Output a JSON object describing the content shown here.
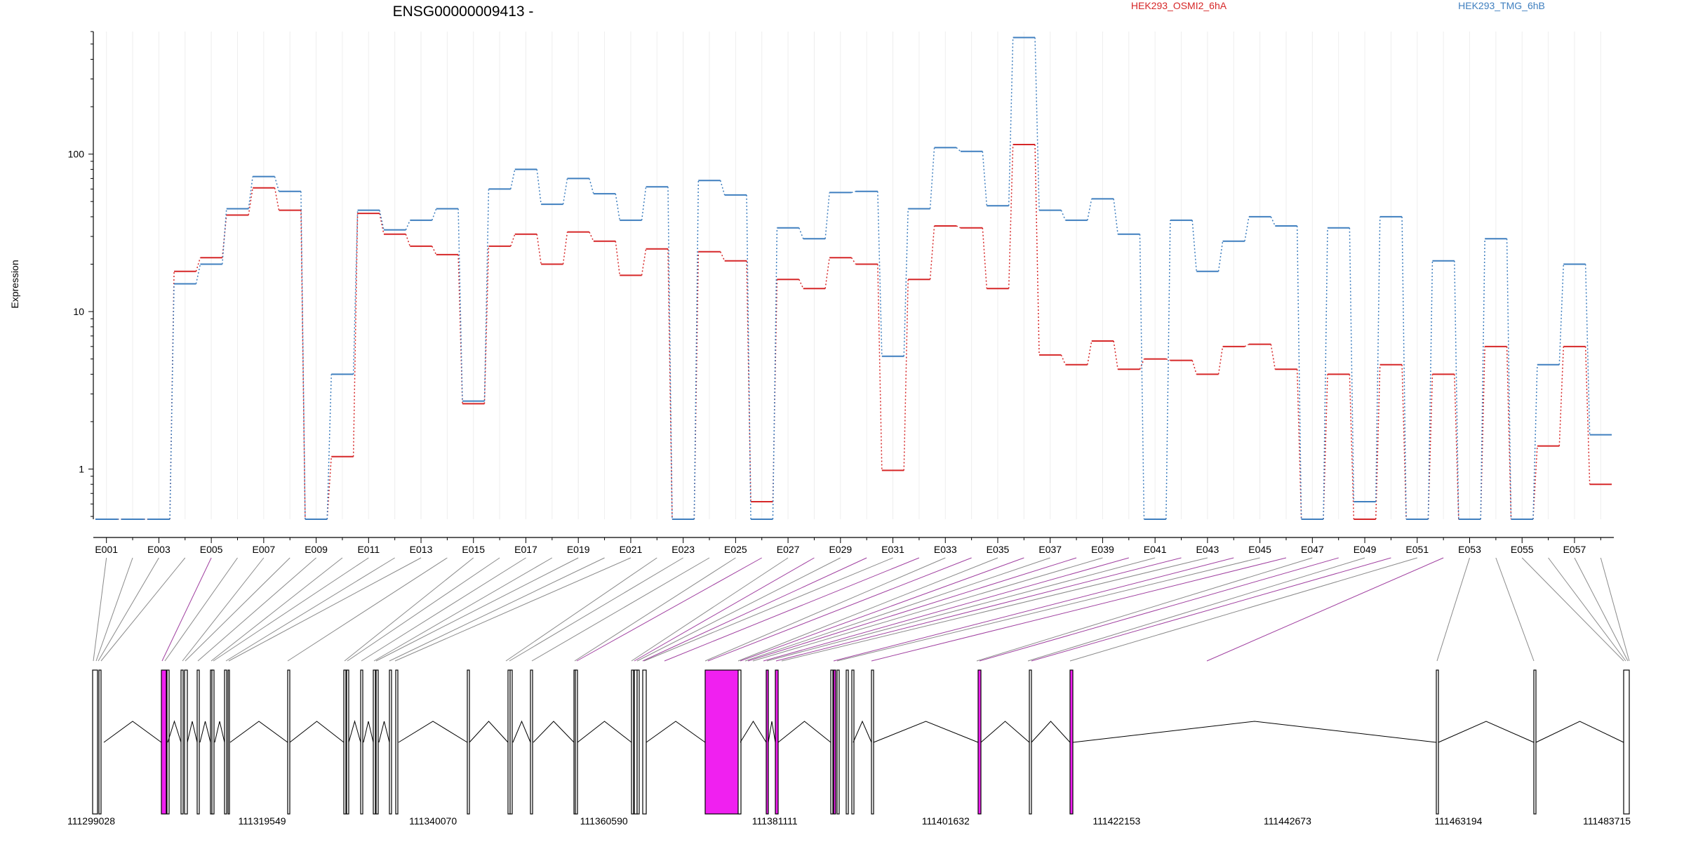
{
  "chart_data": {
    "type": "line",
    "title": "ENSG00000009413 -",
    "ylabel": "Expression",
    "xlabel": "",
    "y_scale": "log",
    "ylim": [
      0.48,
      600
    ],
    "y_ticks": [
      1,
      10,
      100
    ],
    "y_tick_labels": [
      "1",
      "10",
      "100"
    ],
    "grid": "vertical",
    "legend_position": "top-right",
    "categories": [
      "E001",
      "E002",
      "E003",
      "E004",
      "E005",
      "E006",
      "E007",
      "E008",
      "E009",
      "E010",
      "E011",
      "E012",
      "E013",
      "E014",
      "E015",
      "E016",
      "E017",
      "E018",
      "E019",
      "E020",
      "E021",
      "E022",
      "E023",
      "E024",
      "E025",
      "E026",
      "E027",
      "E028",
      "E029",
      "E030",
      "E031",
      "E032",
      "E033",
      "E034",
      "E035",
      "E036",
      "E037",
      "E038",
      "E039",
      "E040",
      "E041",
      "E042",
      "E043",
      "E044",
      "E045",
      "E046",
      "E047",
      "E048",
      "E049",
      "E050",
      "E051",
      "E052",
      "E053",
      "E054",
      "E055",
      "E056",
      "E057",
      "E058"
    ],
    "x_tick_labels": [
      "E001",
      "E003",
      "E005",
      "E007",
      "E009",
      "E011",
      "E013",
      "E015",
      "E017",
      "E019",
      "E021",
      "E023",
      "E025",
      "E027",
      "E029",
      "E031",
      "E033",
      "E035",
      "E037",
      "E039",
      "E041",
      "E043",
      "E045",
      "E047",
      "E049",
      "E051",
      "E053",
      "E055",
      "E057"
    ],
    "series": [
      {
        "name": "HEK293_OSMI2_6hA",
        "color": "#d62728",
        "values": [
          0.48,
          0.48,
          0.48,
          18,
          22,
          41,
          61,
          44,
          0.48,
          1.2,
          42,
          31,
          26,
          23,
          2.6,
          26,
          31,
          20,
          32,
          28,
          17,
          25,
          0.48,
          24,
          21,
          0.62,
          16,
          14,
          22,
          20,
          0.98,
          16,
          35,
          34,
          14,
          115,
          5.3,
          4.6,
          6.5,
          4.3,
          5,
          4.9,
          4,
          6,
          6.2,
          4.3,
          0.48,
          4,
          0.48,
          4.6,
          0.48,
          4,
          0.48,
          6,
          0.48,
          1.4,
          6,
          0.8
        ]
      },
      {
        "name": "HEK293_TMG_6hB",
        "color": "#3f7fbf",
        "values": [
          0.48,
          0.48,
          0.48,
          15,
          20,
          45,
          72,
          58,
          0.48,
          4,
          44,
          33,
          38,
          45,
          2.7,
          60,
          80,
          48,
          70,
          56,
          38,
          62,
          0.48,
          68,
          55,
          0.48,
          34,
          29,
          57,
          58,
          5.2,
          45,
          110,
          104,
          47,
          550,
          44,
          38,
          52,
          31,
          0.48,
          38,
          18,
          28,
          40,
          35,
          0.48,
          34,
          0.62,
          40,
          0.48,
          21,
          0.48,
          29,
          0.48,
          4.6,
          20,
          1.65
        ]
      }
    ],
    "gene_structure": {
      "coord_ticks": [
        "111299028",
        "111319549",
        "111340070",
        "111360590",
        "111381111",
        "111401632",
        "111422153",
        "111442673",
        "111463194",
        "111483715"
      ],
      "exon_color": "#000000",
      "highlight_color": "#e020e0"
    }
  }
}
